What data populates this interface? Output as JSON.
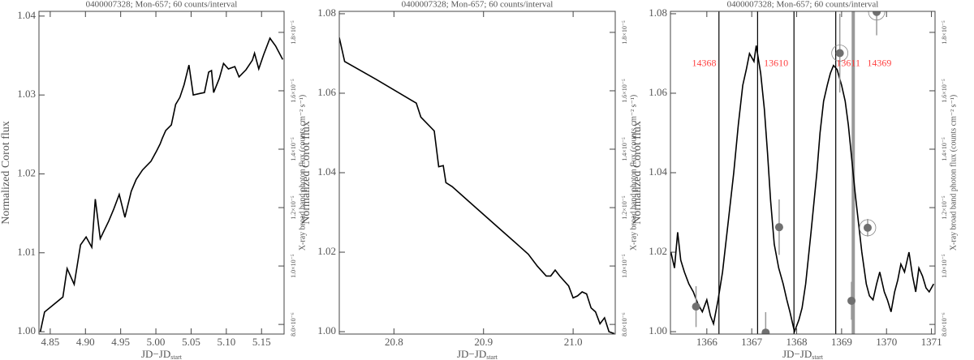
{
  "chart_data": [
    {
      "type": "line",
      "title": "0400007328; Mon-657; 60 counts/interval",
      "xlabel": "JD−JD",
      "xlabel_sub": "start",
      "ylabel": "Normalized Corot flux",
      "y2label": "X-ray broad band photon flux (counts cm⁻² s⁻¹)",
      "color": "#000000",
      "xlim": [
        4.834,
        5.182
      ],
      "ylim": [
        0.9997,
        1.0406
      ],
      "y2lim": [
        7.67e-06,
        1.872e-05
      ],
      "xticks": [
        4.85,
        {
          "value": 4.9,
          "label": "4.90"
        },
        4.95,
        {
          "value": 5,
          "label": "5.00"
        },
        5.05,
        {
          "value": 5.1,
          "label": "5.10"
        },
        5.15
      ],
      "yticks": [
        {
          "value": 1,
          "label": "1.00"
        },
        1.01,
        1.02,
        1.03,
        1.04
      ],
      "y2ticks": [
        {
          "value": 8e-06,
          "label": "8.0×10⁻⁶"
        },
        {
          "value": 1e-05,
          "label": "1.0×10⁻⁵"
        },
        {
          "value": 1.2e-05,
          "label": "1.2×10⁻⁵"
        },
        {
          "value": 1.4e-05,
          "label": "1.4×10⁻⁵"
        },
        {
          "value": 1.6e-05,
          "label": "1.6×10⁻⁵"
        },
        {
          "value": 1.8e-05,
          "label": "1.8×10⁻⁵"
        }
      ],
      "x": [
        4.836,
        4.842,
        4.868,
        4.874,
        4.884,
        4.893,
        4.901,
        4.909,
        4.914,
        4.921,
        4.933,
        4.94,
        4.948,
        4.956,
        4.965,
        4.972,
        4.981,
        4.993,
        5.001,
        5.006,
        5.009,
        5.014,
        5.022,
        5.028,
        5.034,
        5.04,
        5.047,
        5.053,
        5.063,
        5.069,
        5.075,
        5.079,
        5.082,
        5.09,
        5.096,
        5.103,
        5.112,
        5.118,
        5.128,
        5.137,
        5.14,
        5.146,
        5.153,
        5.162,
        5.17,
        5.18
      ],
      "values": [
        1.0,
        1.0025,
        1.0044,
        1.008,
        1.006,
        1.011,
        1.012,
        1.0107,
        1.0168,
        1.0118,
        1.014,
        1.0155,
        1.0174,
        1.0145,
        1.0178,
        1.0193,
        1.0205,
        1.0216,
        1.0229,
        1.0238,
        1.0245,
        1.0255,
        1.0262,
        1.0288,
        1.0297,
        1.0313,
        1.0338,
        1.03,
        1.0302,
        1.0303,
        1.0329,
        1.0331,
        1.0303,
        1.0321,
        1.034,
        1.0333,
        1.0336,
        1.0323,
        1.0332,
        1.0344,
        1.0353,
        1.0333,
        1.0351,
        1.0372,
        1.0362,
        1.0345
      ]
    },
    {
      "type": "line",
      "title": "0400007328; Mon-657; 60 counts/interval",
      "xlabel": "JD−JD",
      "xlabel_sub": "start",
      "ylabel": "Normalized Corot flux",
      "y2label": "X-ray broad band photon flux (counts cm⁻² s⁻¹)",
      "color": "#000000",
      "xlim": [
        20.739,
        21.047
      ],
      "ylim": [
        0.9994,
        1.0806
      ],
      "y2lim": [
        7.67e-06,
        1.872e-05
      ],
      "xticks": [
        20.8,
        20.9,
        {
          "value": 21,
          "label": "21.0"
        }
      ],
      "yticks": [
        {
          "value": 1,
          "label": "1.00"
        },
        1.02,
        1.04,
        1.06,
        1.08
      ],
      "y2ticks": [
        {
          "value": 8e-06,
          "label": "8.0×10⁻⁶"
        },
        {
          "value": 1e-05,
          "label": "1.0×10⁻⁵"
        },
        {
          "value": 1.2e-05,
          "label": "1.2×10⁻⁵"
        },
        {
          "value": 1.4e-05,
          "label": "1.4×10⁻⁵"
        },
        {
          "value": 1.6e-05,
          "label": "1.6×10⁻⁵"
        },
        {
          "value": 1.8e-05,
          "label": "1.8×10⁻⁵"
        }
      ],
      "x": [
        20.739,
        20.745,
        20.78,
        20.81,
        20.825,
        20.83,
        20.845,
        20.85,
        20.855,
        20.858,
        20.865,
        20.88,
        20.9,
        20.92,
        20.94,
        20.95,
        20.96,
        20.97,
        20.975,
        20.98,
        20.985,
        20.995,
        21.0,
        21.005,
        21.01,
        21.015,
        21.02,
        21.025,
        21.03,
        21.035,
        21.04,
        21.046
      ],
      "values": [
        1.074,
        1.068,
        1.0635,
        1.0595,
        1.0575,
        1.054,
        1.0505,
        1.0415,
        1.0418,
        1.0375,
        1.0365,
        1.0335,
        1.0295,
        1.0255,
        1.0215,
        1.0195,
        1.0165,
        1.014,
        1.014,
        1.0155,
        1.014,
        1.0115,
        1.0085,
        1.009,
        1.01,
        1.0095,
        1.006,
        1.005,
        1.002,
        1.0035,
        1.0,
        0.9995
      ]
    },
    {
      "type": "line",
      "title": "0400007328; Mon-657; 60 counts/interval",
      "xlabel": "JD−JD",
      "xlabel_sub": "start",
      "ylabel": "Normalized Corot flux",
      "y2label": "X-ray broad band photon flux (counts cm⁻² s⁻¹)",
      "color": "#000000",
      "xlim": [
        1365.19,
        1371.08
      ],
      "ylim": [
        0.9994,
        1.0806
      ],
      "y2lim": [
        7.67e-06,
        1.872e-05
      ],
      "xticks": [
        1366,
        1367,
        1368,
        1369,
        1370,
        1371
      ],
      "yticks": [
        {
          "value": 1,
          "label": "1.00"
        },
        1.02,
        1.04,
        1.06,
        1.08
      ],
      "y2ticks": [
        {
          "value": 8e-06,
          "label": "8.0×10⁻⁶"
        },
        {
          "value": 1e-05,
          "label": "1.0×10⁻⁵"
        },
        {
          "value": 1.2e-05,
          "label": "1.2×10⁻⁵"
        },
        {
          "value": 1.4e-05,
          "label": "1.4×10⁻⁵"
        },
        {
          "value": 1.6e-05,
          "label": "1.6×10⁻⁵"
        },
        {
          "value": 1.8e-05,
          "label": "1.8×10⁻⁵"
        }
      ],
      "x": [
        1365.2,
        1365.28,
        1365.35,
        1365.42,
        1365.5,
        1365.6,
        1365.7,
        1365.8,
        1365.9,
        1366.0,
        1366.08,
        1366.15,
        1366.25,
        1366.35,
        1366.48,
        1366.6,
        1366.7,
        1366.8,
        1366.88,
        1366.95,
        1367.05,
        1367.1,
        1367.2,
        1367.28,
        1367.35,
        1367.42,
        1367.5,
        1367.6,
        1367.7,
        1367.78,
        1367.85,
        1367.95,
        1368.05,
        1368.12,
        1368.2,
        1368.32,
        1368.45,
        1368.52,
        1368.6,
        1368.68,
        1368.75,
        1368.82,
        1368.9,
        1369.0,
        1369.08,
        1369.15,
        1369.22,
        1369.3,
        1369.38,
        1369.45,
        1369.55,
        1369.62,
        1369.7,
        1369.78,
        1369.85,
        1369.95,
        1370.02,
        1370.1,
        1370.18,
        1370.25,
        1370.32,
        1370.4,
        1370.5,
        1370.58,
        1370.65,
        1370.72,
        1370.8,
        1370.88,
        1370.95,
        1371.05
      ],
      "values": [
        1.02,
        1.016,
        1.025,
        1.018,
        1.015,
        1.012,
        1.01,
        1.007,
        1.005,
        1.008,
        1.004,
        1.002,
        1.008,
        1.015,
        1.028,
        1.04,
        1.052,
        1.062,
        1.066,
        1.07,
        1.068,
        1.072,
        1.065,
        1.056,
        1.045,
        1.033,
        1.022,
        1.016,
        1.012,
        1.008,
        1.005,
        1.0,
        1.003,
        1.006,
        1.012,
        1.025,
        1.04,
        1.05,
        1.058,
        1.062,
        1.065,
        1.067,
        1.066,
        1.062,
        1.058,
        1.052,
        1.044,
        1.035,
        1.027,
        1.02,
        1.012,
        1.009,
        1.008,
        1.012,
        1.015,
        1.01,
        1.008,
        1.005,
        1.01,
        1.013,
        1.017,
        1.015,
        1.02,
        1.014,
        1.01,
        1.016,
        1.014,
        1.011,
        1.01,
        1.012
      ],
      "points": {
        "axis": "y2",
        "color": "#707070",
        "x": [
          1365.76,
          1367.31,
          1367.61,
          1368.96,
          1369.22,
          1369.58,
          1369.78
        ],
        "values": [
          8.61e-06,
          7.72e-06,
          1.133e-05,
          1.729e-05,
          8.81e-06,
          1.131e-05,
          1.87e-05
        ],
        "errors": [
          7e-07,
          7e-07,
          9.5e-07,
          1.35e-06,
          6.5e-07,
          3e-07,
          8e-07
        ],
        "circled": [
          false,
          false,
          false,
          true,
          false,
          true,
          true
        ]
      },
      "vlines": [
        1366.27,
        1367.13,
        1367.94,
        1368.87,
        1369.26
      ],
      "vline_colors": [
        "#000000",
        "#000000",
        "#000000",
        "#000000",
        "#999999"
      ],
      "annotations": [
        {
          "text": "14368",
          "x": 1365.94,
          "y": 1.0674,
          "color": "#ff4040"
        },
        {
          "text": "13610",
          "x": 1367.54,
          "y": 1.0674,
          "color": "#ff4040"
        },
        {
          "text": "13611",
          "x": 1369.15,
          "y": 1.0674,
          "color": "#ff4040"
        },
        {
          "text": "14369",
          "x": 1369.84,
          "y": 1.0674,
          "color": "#ff4040"
        }
      ]
    }
  ]
}
